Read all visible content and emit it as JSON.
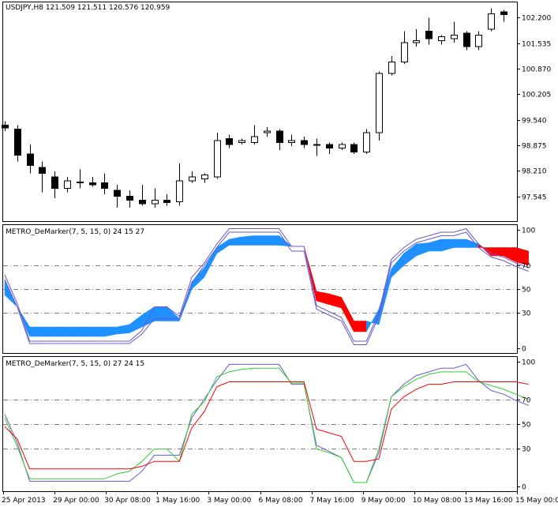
{
  "price_panel": {
    "header": "USDJPY,H8  121.509 121.511 120.576 120.959",
    "y_ticks": [
      "102.200",
      "101.535",
      "100.870",
      "100.205",
      "99.540",
      "98.875",
      "98.210",
      "97.545"
    ]
  },
  "indicator_1": {
    "header": "METRO_DeMarker(7, 5, 15, 0) 24 15 27",
    "y_ticks": [
      "100",
      "70",
      "50",
      "30",
      "0"
    ]
  },
  "indicator_2": {
    "header": "METRO_DeMarker(7, 5, 15, 0) 27 24 15",
    "y_ticks": [
      "100",
      "70",
      "50",
      "30",
      "0"
    ]
  },
  "x_axis": {
    "labels": [
      "25 Apr 2013",
      "29 Apr 00:00",
      "30 Apr 08:00",
      "1 May 16:00",
      "3 May 00:00",
      "6 May 08:00",
      "7 May 16:00",
      "9 May 00:00",
      "10 May 08:00",
      "13 May 16:00",
      "15 May 00:00"
    ]
  },
  "colors": {
    "bull_body": "#ffffff",
    "bear_body": "#000000",
    "band_up": "#1e90ff",
    "band_down": "#ff0000",
    "fast_line": "#32cd32",
    "slow_line": "#ff0000",
    "step_line": "#6a5acd",
    "level_line": "#808080"
  },
  "chart_data": [
    {
      "type": "candlestick",
      "symbol": "USDJPY",
      "timeframe": "H8",
      "ohlc_header": {
        "open": 121.509,
        "high": 121.511,
        "low": 120.576,
        "close": 120.959
      },
      "y_axis_ticks": [
        102.2,
        101.535,
        100.87,
        100.205,
        99.54,
        98.875,
        98.21,
        97.545
      ],
      "ylim": [
        96.9,
        102.6
      ],
      "candles": [
        {
          "o": 99.4,
          "h": 99.5,
          "l": 99.25,
          "c": 99.33
        },
        {
          "o": 99.3,
          "h": 99.4,
          "l": 98.45,
          "c": 98.62
        },
        {
          "o": 98.65,
          "h": 98.9,
          "l": 98.15,
          "c": 98.35
        },
        {
          "o": 98.3,
          "h": 98.45,
          "l": 97.65,
          "c": 98.15
        },
        {
          "o": 98.05,
          "h": 98.2,
          "l": 97.5,
          "c": 97.75
        },
        {
          "o": 97.75,
          "h": 98.05,
          "l": 97.65,
          "c": 97.95
        },
        {
          "o": 97.9,
          "h": 98.25,
          "l": 97.75,
          "c": 97.92
        },
        {
          "o": 97.9,
          "h": 98.05,
          "l": 97.8,
          "c": 97.85
        },
        {
          "o": 97.9,
          "h": 98.15,
          "l": 97.6,
          "c": 97.75
        },
        {
          "o": 97.7,
          "h": 97.85,
          "l": 97.25,
          "c": 97.55
        },
        {
          "o": 97.55,
          "h": 97.7,
          "l": 97.25,
          "c": 97.45
        },
        {
          "o": 97.45,
          "h": 97.85,
          "l": 97.3,
          "c": 97.35
        },
        {
          "o": 97.35,
          "h": 97.75,
          "l": 97.25,
          "c": 97.45
        },
        {
          "o": 97.45,
          "h": 97.6,
          "l": 97.3,
          "c": 97.38
        },
        {
          "o": 97.4,
          "h": 98.4,
          "l": 97.3,
          "c": 97.95
        },
        {
          "o": 97.95,
          "h": 98.2,
          "l": 97.9,
          "c": 98.05
        },
        {
          "o": 98.0,
          "h": 98.15,
          "l": 97.9,
          "c": 98.1
        },
        {
          "o": 98.05,
          "h": 99.2,
          "l": 98.0,
          "c": 99.0
        },
        {
          "o": 99.05,
          "h": 99.15,
          "l": 98.8,
          "c": 98.9
        },
        {
          "o": 98.95,
          "h": 99.05,
          "l": 98.9,
          "c": 99.0
        },
        {
          "o": 98.95,
          "h": 99.4,
          "l": 98.9,
          "c": 99.1
        },
        {
          "o": 99.2,
          "h": 99.35,
          "l": 99.1,
          "c": 99.25
        },
        {
          "o": 99.25,
          "h": 99.3,
          "l": 98.75,
          "c": 98.95
        },
        {
          "o": 98.95,
          "h": 99.15,
          "l": 98.85,
          "c": 99.0
        },
        {
          "o": 99.0,
          "h": 99.1,
          "l": 98.8,
          "c": 98.9
        },
        {
          "o": 98.9,
          "h": 99.05,
          "l": 98.6,
          "c": 98.9
        },
        {
          "o": 98.9,
          "h": 98.95,
          "l": 98.65,
          "c": 98.8
        },
        {
          "o": 98.8,
          "h": 98.95,
          "l": 98.75,
          "c": 98.9
        },
        {
          "o": 98.9,
          "h": 98.95,
          "l": 98.65,
          "c": 98.7
        },
        {
          "o": 98.7,
          "h": 99.3,
          "l": 98.65,
          "c": 99.2
        },
        {
          "o": 99.2,
          "h": 100.8,
          "l": 99.0,
          "c": 100.75
        },
        {
          "o": 100.75,
          "h": 101.2,
          "l": 100.7,
          "c": 101.05
        },
        {
          "o": 101.05,
          "h": 101.85,
          "l": 101.0,
          "c": 101.55
        },
        {
          "o": 101.55,
          "h": 101.9,
          "l": 101.45,
          "c": 101.6
        },
        {
          "o": 101.85,
          "h": 102.2,
          "l": 101.5,
          "c": 101.65
        },
        {
          "o": 101.6,
          "h": 101.75,
          "l": 101.5,
          "c": 101.7
        },
        {
          "o": 101.65,
          "h": 102.1,
          "l": 101.55,
          "c": 101.75
        },
        {
          "o": 101.8,
          "h": 101.85,
          "l": 101.35,
          "c": 101.45
        },
        {
          "o": 101.45,
          "h": 101.85,
          "l": 101.35,
          "c": 101.75
        },
        {
          "o": 101.9,
          "h": 102.45,
          "l": 101.85,
          "c": 102.3
        },
        {
          "o": 102.35,
          "h": 102.4,
          "l": 102.1,
          "c": 102.28
        }
      ]
    },
    {
      "type": "area",
      "name": "METRO_DeMarker(7, 5, 15, 0) 24 15 27",
      "y_axis_ticks": [
        100,
        70,
        50,
        30,
        0
      ],
      "levels": [
        70,
        50,
        30
      ],
      "ylim": [
        -4,
        104
      ],
      "step_upper": [
        62,
        38,
        6,
        6,
        6,
        6,
        6,
        6,
        6,
        6,
        6,
        15,
        35,
        35,
        27,
        60,
        72,
        88,
        101,
        101,
        101,
        101,
        101,
        86,
        86,
        36,
        31,
        26,
        6,
        6,
        30,
        75,
        85,
        92,
        95,
        98,
        98,
        101,
        88,
        80,
        77,
        72,
        68
      ],
      "step_lower": [
        58,
        35,
        4,
        4,
        4,
        4,
        4,
        4,
        4,
        4,
        4,
        12,
        25,
        25,
        25,
        55,
        70,
        85,
        98,
        98,
        98,
        98,
        98,
        82,
        82,
        33,
        28,
        23,
        3,
        3,
        27,
        72,
        82,
        89,
        92,
        95,
        95,
        98,
        85,
        77,
        74,
        69,
        65
      ],
      "band_fast": [
        58,
        35,
        18,
        18,
        18,
        18,
        18,
        18,
        18,
        18,
        20,
        28,
        35,
        35,
        25,
        56,
        68,
        85,
        92,
        94,
        95,
        95,
        95,
        86,
        86,
        40,
        37,
        34,
        14,
        14,
        33,
        67,
        80,
        88,
        89,
        92,
        92,
        92,
        88,
        78,
        78,
        73,
        70
      ],
      "band_slow": [
        45,
        35,
        10,
        10,
        10,
        10,
        10,
        10,
        10,
        12,
        13,
        18,
        23,
        23,
        23,
        50,
        60,
        80,
        87,
        87,
        87,
        87,
        87,
        86,
        86,
        48,
        46,
        43,
        23,
        23,
        20,
        60,
        70,
        78,
        82,
        82,
        85,
        85,
        85,
        85,
        85,
        85,
        82
      ],
      "band_up_color": "#1e90ff",
      "band_down_color": "#ff0000"
    },
    {
      "type": "line",
      "name": "METRO_DeMarker(7, 5, 15, 0) 27 24 15",
      "y_axis_ticks": [
        100,
        70,
        50,
        30,
        0
      ],
      "levels": [
        70,
        50,
        30
      ],
      "ylim": [
        -4,
        104
      ],
      "series": [
        {
          "color": "#6a5acd",
          "values": [
            58,
            35,
            4,
            4,
            4,
            4,
            4,
            4,
            4,
            4,
            4,
            12,
            25,
            25,
            25,
            55,
            70,
            85,
            98,
            98,
            98,
            98,
            98,
            82,
            82,
            33,
            28,
            23,
            3,
            3,
            27,
            72,
            82,
            89,
            92,
            95,
            95,
            98,
            85,
            77,
            74,
            69,
            65
          ]
        },
        {
          "color": "#32cd32",
          "values": [
            55,
            32,
            6,
            6,
            6,
            6,
            6,
            6,
            6,
            10,
            12,
            20,
            30,
            30,
            20,
            58,
            68,
            88,
            92,
            94,
            95,
            95,
            95,
            83,
            83,
            30,
            27,
            23,
            3,
            3,
            30,
            72,
            80,
            86,
            90,
            92,
            92,
            92,
            84,
            81,
            78,
            74,
            70
          ]
        },
        {
          "color": "#ff0000",
          "values": [
            48,
            38,
            14,
            14,
            14,
            14,
            14,
            14,
            14,
            14,
            14,
            16,
            20,
            20,
            20,
            47,
            60,
            80,
            84,
            84,
            84,
            84,
            84,
            84,
            84,
            46,
            43,
            40,
            20,
            20,
            22,
            62,
            72,
            78,
            82,
            82,
            84,
            84,
            84,
            84,
            84,
            84,
            82
          ]
        }
      ]
    }
  ]
}
